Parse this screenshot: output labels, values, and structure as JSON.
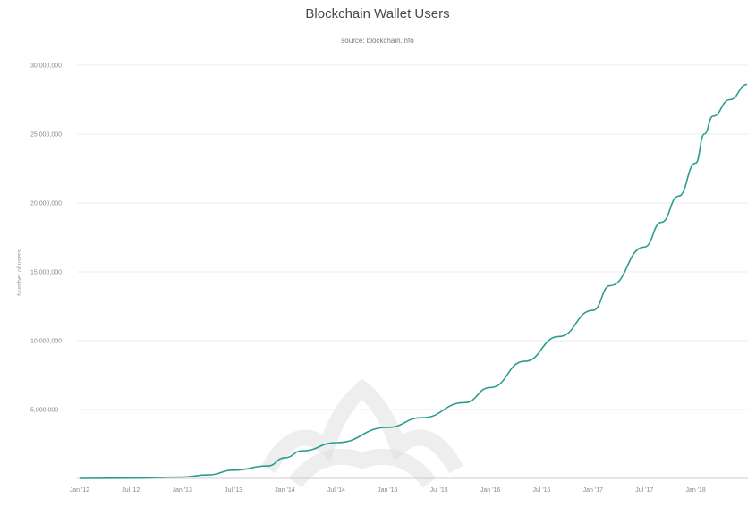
{
  "chart_data": {
    "type": "line",
    "title": "Blockchain Wallet Users",
    "subtitle": "source: blockchain.info",
    "ylabel": "Number of users",
    "xlabel": "",
    "y_ticks": [
      {
        "value": 5000000,
        "label": "5,000,000"
      },
      {
        "value": 10000000,
        "label": "10,000,000"
      },
      {
        "value": 15000000,
        "label": "15,000,000"
      },
      {
        "value": 20000000,
        "label": "20,000,000"
      },
      {
        "value": 25000000,
        "label": "25,000,000"
      },
      {
        "value": 30000000,
        "label": "30,000,000"
      }
    ],
    "x_ticks": [
      {
        "value": 0,
        "label": "Jan '12"
      },
      {
        "value": 6,
        "label": "Jul '12"
      },
      {
        "value": 12,
        "label": "Jan '13"
      },
      {
        "value": 18,
        "label": "Jul '13"
      },
      {
        "value": 24,
        "label": "Jan '14"
      },
      {
        "value": 30,
        "label": "Jul '14"
      },
      {
        "value": 36,
        "label": "Jan '15"
      },
      {
        "value": 42,
        "label": "Jul '15"
      },
      {
        "value": 48,
        "label": "Jan '16"
      },
      {
        "value": 54,
        "label": "Jul '16"
      },
      {
        "value": 60,
        "label": "Jan '17"
      },
      {
        "value": 66,
        "label": "Jul '17"
      },
      {
        "value": 72,
        "label": "Jan '18"
      }
    ],
    "xlim": [
      -0.3,
      78.1
    ],
    "ylim": [
      0,
      30000000
    ],
    "grid": true,
    "series": [
      {
        "color": "#2a9d8f",
        "points": [
          [
            0,
            0
          ],
          [
            6,
            20000
          ],
          [
            12,
            100000
          ],
          [
            15,
            250000
          ],
          [
            18,
            600000
          ],
          [
            22,
            900000
          ],
          [
            24,
            1500000
          ],
          [
            26,
            2000000
          ],
          [
            30,
            2600000
          ],
          [
            36,
            3700000
          ],
          [
            40,
            4400000
          ],
          [
            45,
            5500000
          ],
          [
            48,
            6600000
          ],
          [
            52,
            8500000
          ],
          [
            56,
            10300000
          ],
          [
            60,
            12200000
          ],
          [
            62,
            14000000
          ],
          [
            66,
            16800000
          ],
          [
            68,
            18600000
          ],
          [
            70,
            20500000
          ],
          [
            72,
            22900000
          ],
          [
            73,
            25000000
          ],
          [
            74,
            26300000
          ],
          [
            76,
            27500000
          ],
          [
            78,
            28600000
          ]
        ]
      }
    ]
  }
}
